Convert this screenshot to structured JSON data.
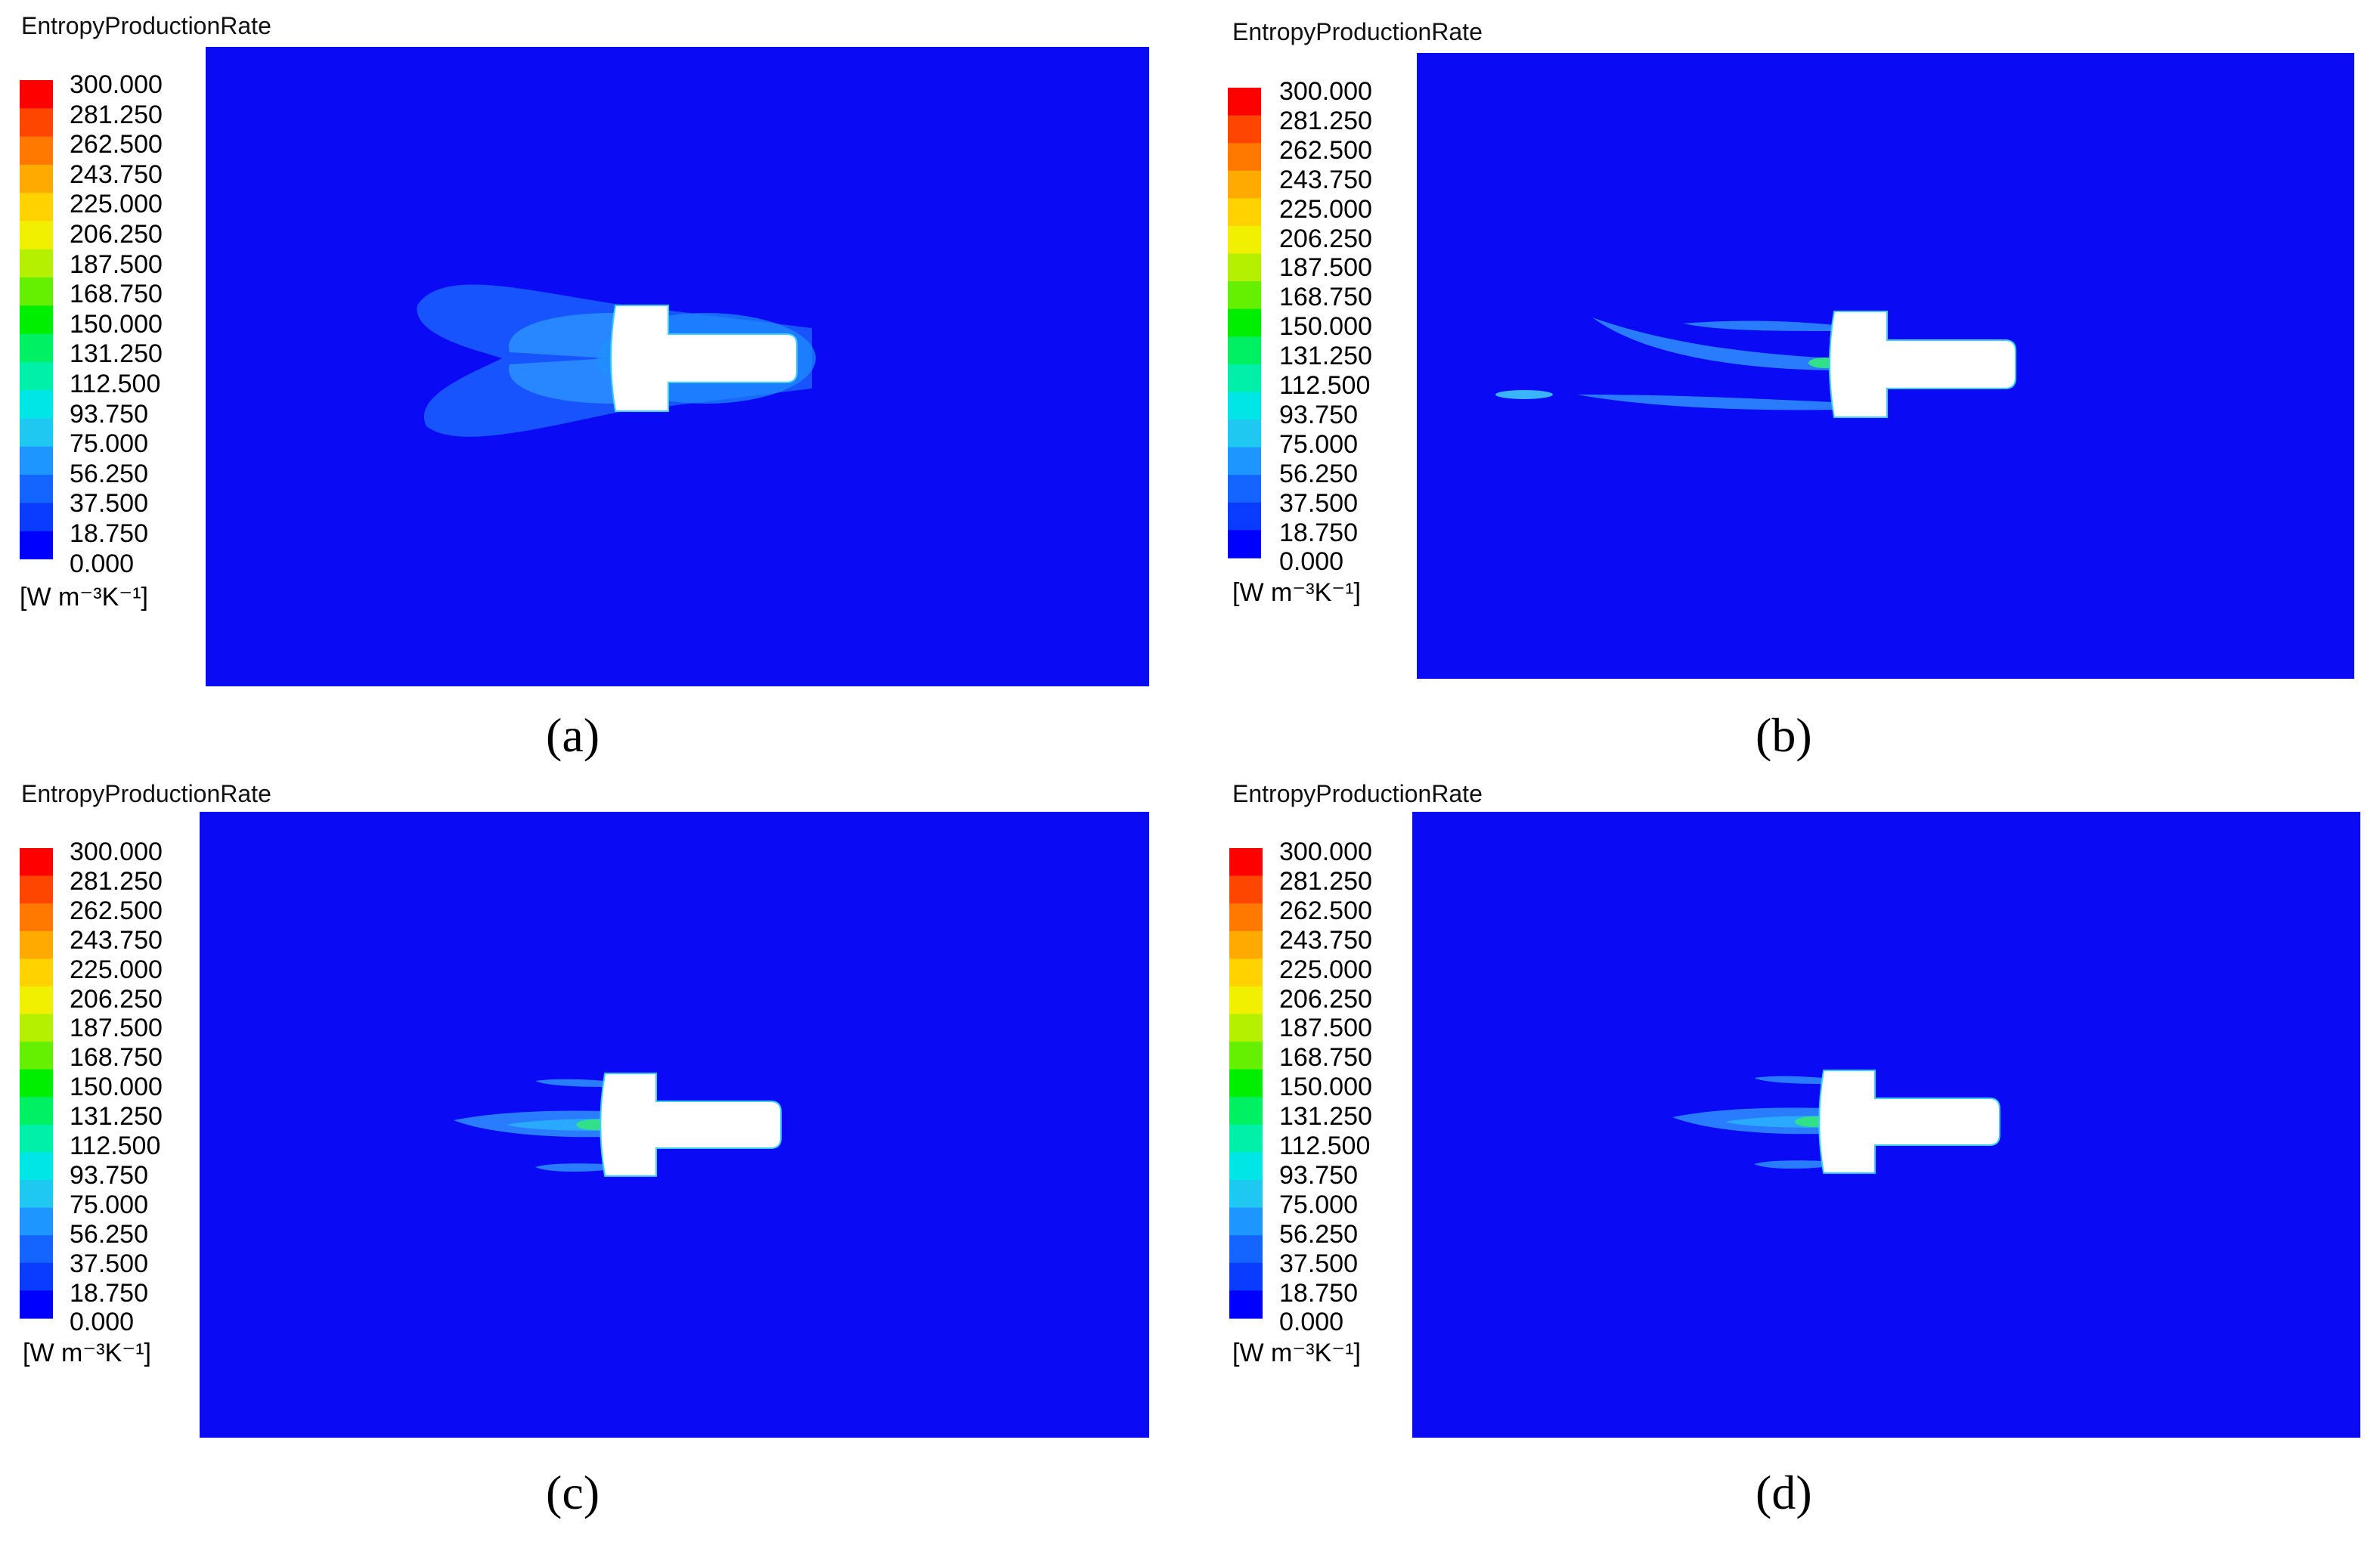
{
  "chart_data": [
    {
      "type": "heatmap",
      "label": "(a)",
      "title": "EntropyProductionRate",
      "units": "[W m⁻³K⁻¹]",
      "colorbar_levels": [
        "300.000",
        "281.250",
        "262.500",
        "243.750",
        "225.000",
        "206.250",
        "187.500",
        "168.750",
        "150.000",
        "131.250",
        "112.500",
        "93.750",
        "75.000",
        "56.250",
        "37.500",
        "18.750",
        "0.000"
      ],
      "range": [
        0,
        300
      ],
      "wake": "wide"
    },
    {
      "type": "heatmap",
      "label": "(b)",
      "title": "EntropyProductionRate",
      "units": "[W m⁻³K⁻¹]",
      "colorbar_levels": [
        "300.000",
        "281.250",
        "262.500",
        "243.750",
        "225.000",
        "206.250",
        "187.500",
        "168.750",
        "150.000",
        "131.250",
        "112.500",
        "93.750",
        "75.000",
        "56.250",
        "37.500",
        "18.750",
        "0.000"
      ],
      "range": [
        0,
        300
      ],
      "wake": "long-thin"
    },
    {
      "type": "heatmap",
      "label": "(c)",
      "title": "EntropyProductionRate",
      "units": "[W m⁻³K⁻¹]",
      "colorbar_levels": [
        "300.000",
        "281.250",
        "262.500",
        "243.750",
        "225.000",
        "206.250",
        "187.500",
        "168.750",
        "150.000",
        "131.250",
        "112.500",
        "93.750",
        "75.000",
        "56.250",
        "37.500",
        "18.750",
        "0.000"
      ],
      "range": [
        0,
        300
      ],
      "wake": "short"
    },
    {
      "type": "heatmap",
      "label": "(d)",
      "title": "EntropyProductionRate",
      "units": "[W m⁻³K⁻¹]",
      "colorbar_levels": [
        "300.000",
        "281.250",
        "262.500",
        "243.750",
        "225.000",
        "206.250",
        "187.500",
        "168.750",
        "150.000",
        "131.250",
        "112.500",
        "93.750",
        "75.000",
        "56.250",
        "37.500",
        "18.750",
        "0.000"
      ],
      "range": [
        0,
        300
      ],
      "wake": "short"
    }
  ],
  "colors": {
    "background_field": "#0a0af5",
    "colormap": [
      "#0000ff",
      "#0a3cff",
      "#1464ff",
      "#1e96ff",
      "#1ec8f0",
      "#00e6e6",
      "#00f0aa",
      "#00f064",
      "#00ee00",
      "#64f000",
      "#b4f000",
      "#f0f000",
      "#ffd200",
      "#ffaa00",
      "#ff7800",
      "#ff4600",
      "#ff0000"
    ]
  }
}
